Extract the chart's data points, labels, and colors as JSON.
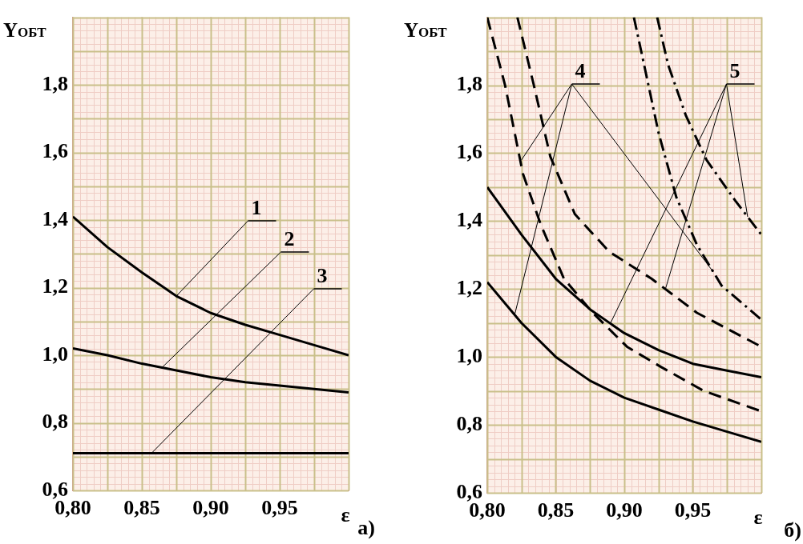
{
  "chart_data": [
    {
      "type": "line",
      "xlabel": "ε",
      "ylabel": "Y$_{ОБТ}$",
      "xlim": [
        0.8,
        1.0
      ],
      "ylim": [
        0.6,
        2.0
      ],
      "xticks": [
        {
          "value": 0.8,
          "label": "0,80"
        },
        {
          "value": 0.85,
          "label": "0,85"
        },
        {
          "value": 0.9,
          "label": "0,90"
        },
        {
          "value": 0.95,
          "label": "0,95"
        }
      ],
      "yticks": [
        {
          "value": 0.6,
          "label": "0,6"
        },
        {
          "value": 0.8,
          "label": "0,8"
        },
        {
          "value": 1.0,
          "label": "1,0"
        },
        {
          "value": 1.2,
          "label": "1,2"
        },
        {
          "value": 1.4,
          "label": "1,4"
        },
        {
          "value": 1.6,
          "label": "1,6"
        },
        {
          "value": 1.8,
          "label": "1,8"
        }
      ],
      "grid": true,
      "marker": "none",
      "series": [
        {
          "color": "#000000",
          "line_style": "solid",
          "x": [
            0.8,
            0.825,
            0.85,
            0.875,
            0.9,
            0.925,
            0.95,
            0.975,
            1.0
          ],
          "values": [
            1.41,
            1.32,
            1.245,
            1.175,
            1.125,
            1.09,
            1.06,
            1.03,
            1.0
          ]
        },
        {
          "color": "#000000",
          "line_style": "solid",
          "x": [
            0.8,
            0.825,
            0.85,
            0.875,
            0.9,
            0.925,
            0.95,
            0.975,
            1.0
          ],
          "values": [
            1.02,
            1.0,
            0.975,
            0.955,
            0.935,
            0.92,
            0.91,
            0.9,
            0.89
          ]
        },
        {
          "color": "#000000",
          "line_style": "solid",
          "x": [
            0.8,
            1.0
          ],
          "values": [
            0.71,
            0.71
          ]
        }
      ],
      "annotations": [
        {
          "text": "1",
          "x": 0.875,
          "y": 1.175
        },
        {
          "text": "2",
          "x": 0.865,
          "y": 0.965
        },
        {
          "text": "3",
          "x": 0.857,
          "y": 0.71
        },
        "а)"
      ]
    },
    {
      "type": "line",
      "xlabel": "ε",
      "ylabel": "Y$_{ОБТ}$",
      "xlim": [
        0.8,
        1.0
      ],
      "ylim": [
        0.6,
        2.0
      ],
      "xticks": [
        {
          "value": 0.8,
          "label": "0,80"
        },
        {
          "value": 0.85,
          "label": "0,85"
        },
        {
          "value": 0.9,
          "label": "0,90"
        },
        {
          "value": 0.95,
          "label": "0,95"
        }
      ],
      "yticks": [
        {
          "value": 0.6,
          "label": "0,6"
        },
        {
          "value": 0.8,
          "label": "0,8"
        },
        {
          "value": 1.0,
          "label": "1,0"
        },
        {
          "value": 1.2,
          "label": "1,2"
        },
        {
          "value": 1.4,
          "label": "1,4"
        },
        {
          "value": 1.6,
          "label": "1,6"
        },
        {
          "value": 1.8,
          "label": "1,8"
        }
      ],
      "grid": true,
      "marker": "none",
      "series": [
        {
          "color": "#000000",
          "line_style": "solid",
          "x": [
            0.8,
            0.825,
            0.85,
            0.875,
            0.9,
            0.925,
            0.95,
            0.975,
            1.0
          ],
          "values": [
            1.5,
            1.36,
            1.23,
            1.14,
            1.07,
            1.02,
            0.98,
            0.96,
            0.94
          ]
        },
        {
          "color": "#000000",
          "line_style": "solid",
          "x": [
            0.8,
            0.825,
            0.85,
            0.875,
            0.9,
            0.925,
            0.95,
            0.975,
            1.0
          ],
          "values": [
            1.22,
            1.1,
            1.0,
            0.93,
            0.88,
            0.845,
            0.81,
            0.78,
            0.75
          ]
        },
        {
          "color": "#000000",
          "line_style": "dashed",
          "x": [
            0.8,
            0.813,
            0.826,
            0.839,
            0.856,
            0.877,
            0.902,
            0.927,
            0.958,
            1.0
          ],
          "values": [
            2.0,
            1.8,
            1.54,
            1.39,
            1.23,
            1.13,
            1.03,
            0.97,
            0.9,
            0.84
          ]
        },
        {
          "color": "#000000",
          "line_style": "dashed",
          "x": [
            0.822,
            0.834,
            0.846,
            0.864,
            0.889,
            0.92,
            0.953,
            1.0
          ],
          "values": [
            2.0,
            1.8,
            1.59,
            1.42,
            1.31,
            1.23,
            1.13,
            1.03
          ]
        },
        {
          "color": "#000000",
          "line_style": "dashdot",
          "x": [
            0.907,
            0.915,
            0.925,
            0.938,
            0.953,
            0.971,
            1.0
          ],
          "values": [
            2.0,
            1.85,
            1.66,
            1.47,
            1.33,
            1.21,
            1.11
          ]
        },
        {
          "color": "#000000",
          "line_style": "dashdot",
          "x": [
            0.924,
            0.932,
            0.945,
            0.96,
            0.981,
            1.0
          ],
          "values": [
            2.0,
            1.86,
            1.71,
            1.58,
            1.46,
            1.36
          ]
        }
      ],
      "annotations": [
        {
          "text": "4",
          "x": 0.825,
          "y": 1.58
        },
        {
          "text": "5",
          "x": 0.89,
          "y": 1.1
        },
        "б)"
      ]
    }
  ]
}
